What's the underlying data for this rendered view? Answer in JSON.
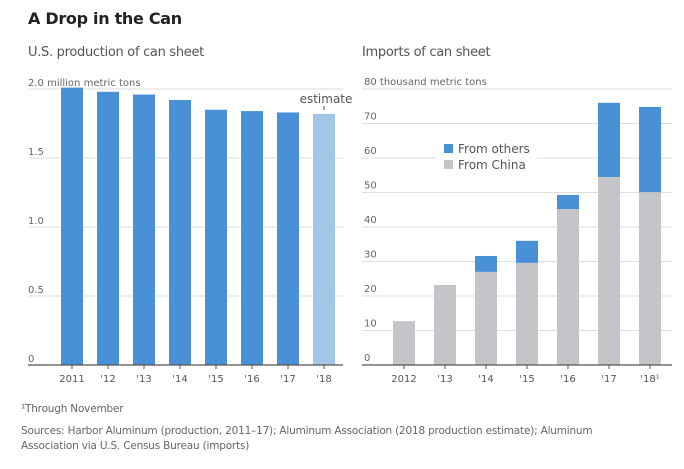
{
  "title": "A Drop in the Can",
  "footnote": "¹Through November",
  "sources": "Sources: Harbor Aluminum (production, 2011–17); Aluminum Association (2018 production estimate); Aluminum Association via U.S. Census Bureau (imports)",
  "colors": {
    "blue": "#4a90d6",
    "light_blue": "#a2c6e8",
    "gray": "#c4c5c9",
    "grid": "#dddddd",
    "axis": "#555555"
  },
  "chart_data": [
    {
      "type": "bar",
      "title": "U.S. production of can sheet",
      "ylabel": "million metric tons",
      "ylim": [
        0,
        2.0
      ],
      "yticks": [
        0,
        0.5,
        1.0,
        1.5,
        2.0
      ],
      "ytick_labels": [
        "0",
        "0.5",
        "1.0",
        "1.5",
        "2.0"
      ],
      "categories": [
        "2011",
        "'12",
        "'13",
        "'14",
        "'15",
        "'16",
        "'17",
        "'18"
      ],
      "values": [
        2.01,
        1.98,
        1.96,
        1.92,
        1.85,
        1.84,
        1.83,
        1.82
      ],
      "estimate_index": 7,
      "annotation": "estimate",
      "grid": true
    },
    {
      "type": "bar",
      "stacked": true,
      "title": "Imports of can sheet",
      "ylabel": "thousand metric tons",
      "ylim": [
        0,
        80
      ],
      "yticks": [
        0,
        10,
        20,
        30,
        40,
        50,
        60,
        70,
        80
      ],
      "ytick_labels": [
        "0",
        "10",
        "20",
        "30",
        "40",
        "50",
        "60",
        "70",
        "80"
      ],
      "categories": [
        "2012",
        "'13",
        "'14",
        "'15",
        "'16",
        "'17",
        "'18¹"
      ],
      "series": [
        {
          "name": "From China",
          "values": [
            12.7,
            23.2,
            27.0,
            29.6,
            45.2,
            54.5,
            50.1
          ]
        },
        {
          "name": "From others",
          "values": [
            0,
            0,
            4.6,
            6.4,
            4.1,
            21.5,
            24.7
          ]
        }
      ],
      "legend": [
        "From others",
        "From China"
      ],
      "legend_position": "center-left",
      "grid": true
    }
  ]
}
